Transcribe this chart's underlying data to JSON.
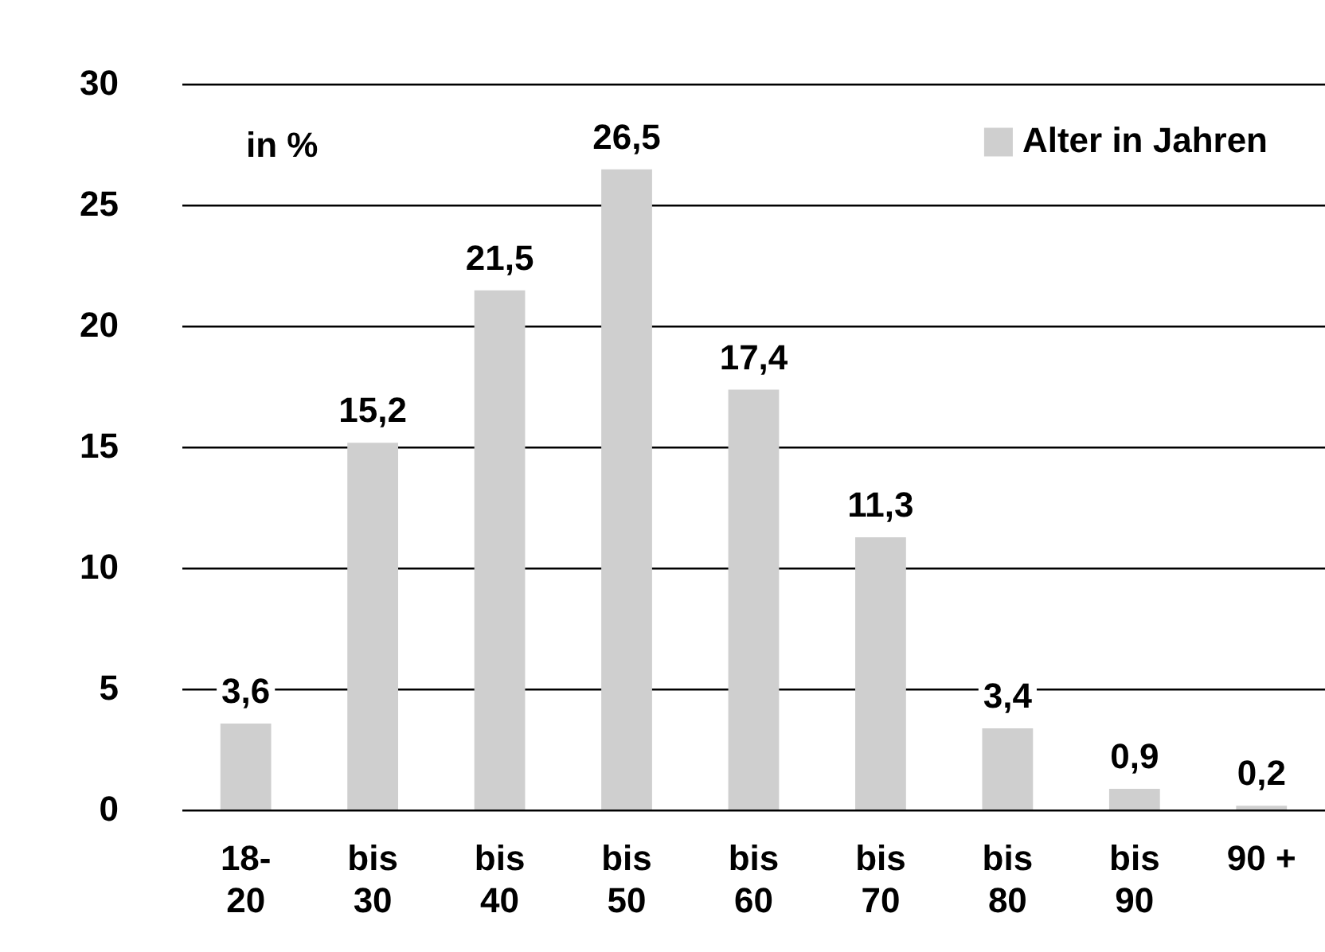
{
  "chart_data": {
    "type": "bar",
    "categories": [
      "18-\n20",
      "bis\n30",
      "bis\n40",
      "bis\n50",
      "bis\n60",
      "bis\n70",
      "bis\n80",
      "bis\n90",
      "90 +"
    ],
    "series": [
      {
        "name": "Alter in Jahren",
        "color": "#cfcfcf",
        "values": [
          3.6,
          15.2,
          21.5,
          26.5,
          17.4,
          11.3,
          3.4,
          0.9,
          0.2
        ],
        "value_labels": [
          "3,6",
          "15,2",
          "21,5",
          "26,5",
          "17,4",
          "11,3",
          "3,4",
          "0,9",
          "0,2"
        ]
      }
    ],
    "ylim": [
      0,
      30
    ],
    "yticks": [
      0,
      5,
      10,
      15,
      20,
      25,
      30
    ],
    "grid": "y",
    "legend": "top right",
    "annotations": [
      "in %"
    ]
  }
}
